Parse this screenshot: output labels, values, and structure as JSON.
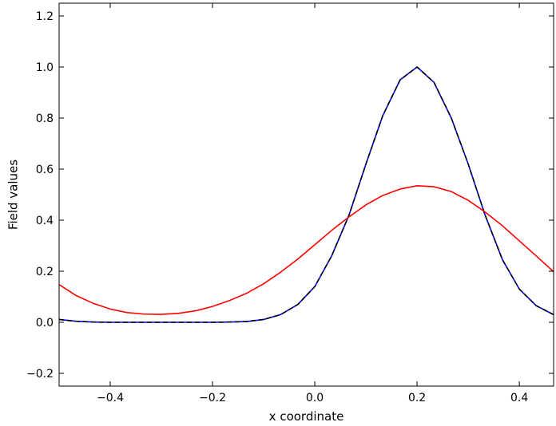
{
  "chart_data": {
    "type": "line",
    "xlabel": "x coordinate",
    "ylabel": "Field values",
    "xlim": [
      -0.5,
      0.467
    ],
    "ylim": [
      -0.25,
      1.25
    ],
    "grid": false,
    "xticks": [
      -0.4,
      -0.2,
      0.0,
      0.2,
      0.4
    ],
    "xtick_labels": [
      "−0.4",
      "−0.2",
      "0.0",
      "0.2",
      "0.4"
    ],
    "yticks": [
      -0.2,
      0.0,
      0.2,
      0.4,
      0.6,
      0.8,
      1.0,
      1.2
    ],
    "ytick_labels": [
      "−0.2",
      "0.0",
      "0.2",
      "0.4",
      "0.6",
      "0.8",
      "1.0",
      "1.2"
    ],
    "series": [
      {
        "color": "#0000ff",
        "style": "solid",
        "x": [
          -0.5,
          -0.467,
          -0.433,
          -0.4,
          -0.367,
          -0.333,
          -0.3,
          -0.267,
          -0.233,
          -0.2,
          -0.167,
          -0.133,
          -0.1,
          -0.067,
          -0.033,
          0.0,
          0.033,
          0.067,
          0.1,
          0.133,
          0.167,
          0.2,
          0.233,
          0.267,
          0.3,
          0.333,
          0.367,
          0.4,
          0.433,
          0.467
        ],
        "y": [
          0.011,
          0.004,
          0.001,
          0.0,
          0.0,
          0.0,
          0.0,
          0.0,
          0.0,
          0.0,
          0.001,
          0.003,
          0.011,
          0.03,
          0.07,
          0.14,
          0.26,
          0.42,
          0.62,
          0.81,
          0.95,
          1.0,
          0.94,
          0.8,
          0.62,
          0.42,
          0.245,
          0.13,
          0.065,
          0.03
        ]
      },
      {
        "color": "#000000",
        "style": "dashed",
        "x": [
          -0.5,
          -0.467,
          -0.433,
          -0.4,
          -0.367,
          -0.333,
          -0.3,
          -0.267,
          -0.233,
          -0.2,
          -0.167,
          -0.133,
          -0.1,
          -0.067,
          -0.033,
          0.0,
          0.033,
          0.067,
          0.1,
          0.133,
          0.167,
          0.2,
          0.233,
          0.267,
          0.3,
          0.333,
          0.367,
          0.4,
          0.433,
          0.467
        ],
        "y": [
          0.011,
          0.004,
          0.001,
          0.0,
          0.0,
          0.0,
          0.0,
          0.0,
          0.0,
          0.0,
          0.001,
          0.003,
          0.011,
          0.03,
          0.07,
          0.14,
          0.26,
          0.42,
          0.62,
          0.81,
          0.95,
          1.0,
          0.94,
          0.8,
          0.62,
          0.42,
          0.245,
          0.13,
          0.065,
          0.03
        ]
      },
      {
        "color": "#ff0000",
        "style": "solid",
        "x": [
          -0.5,
          -0.467,
          -0.433,
          -0.4,
          -0.367,
          -0.333,
          -0.3,
          -0.267,
          -0.233,
          -0.2,
          -0.167,
          -0.133,
          -0.1,
          -0.067,
          -0.033,
          0.0,
          0.033,
          0.067,
          0.1,
          0.133,
          0.167,
          0.2,
          0.233,
          0.267,
          0.3,
          0.333,
          0.367,
          0.4,
          0.433,
          0.467
        ],
        "y": [
          0.148,
          0.105,
          0.074,
          0.052,
          0.038,
          0.032,
          0.031,
          0.035,
          0.045,
          0.062,
          0.085,
          0.114,
          0.151,
          0.196,
          0.248,
          0.304,
          0.36,
          0.413,
          0.46,
          0.497,
          0.522,
          0.535,
          0.531,
          0.512,
          0.478,
          0.432,
          0.378,
          0.319,
          0.26,
          0.198
        ]
      }
    ]
  }
}
